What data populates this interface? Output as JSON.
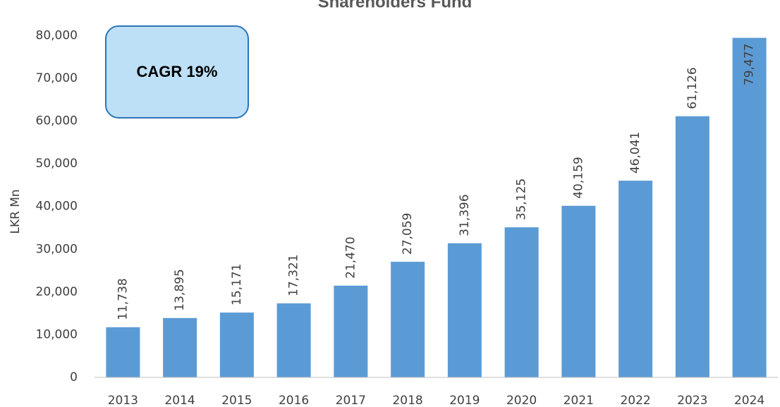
{
  "chart_data": {
    "type": "bar",
    "title": "Shareholders Fund",
    "annotation": "CAGR 19%",
    "ylabel": "LKR Mn",
    "categories": [
      "2013",
      "2014",
      "2015",
      "2016",
      "2017",
      "2018",
      "2019",
      "2020",
      "2021",
      "2022",
      "2023",
      "2024"
    ],
    "values": [
      11738,
      13895,
      15171,
      17321,
      21470,
      27059,
      31396,
      35125,
      40159,
      46041,
      61126,
      79477
    ],
    "value_labels": [
      "11,738",
      "13,895",
      "15,171",
      "17,321",
      "21,470",
      "27,059",
      "31,396",
      "35,125",
      "40,159",
      "46,041",
      "61,126",
      "79,477"
    ],
    "color": "#5b9bd5",
    "ylim": [
      0,
      88000
    ],
    "yticks": [
      0,
      {
        "value": 10000,
        "label": "10,000"
      },
      {
        "value": 20000,
        "label": "20,000"
      },
      {
        "value": 30000,
        "label": "30,000"
      },
      {
        "value": 40000,
        "label": "40,000"
      },
      {
        "value": 50000,
        "label": "50,000"
      },
      {
        "value": 60000,
        "label": "60,000"
      },
      {
        "value": 70000,
        "label": "70,000"
      },
      {
        "value": 80000,
        "label": "80,000"
      }
    ],
    "grid": false
  }
}
